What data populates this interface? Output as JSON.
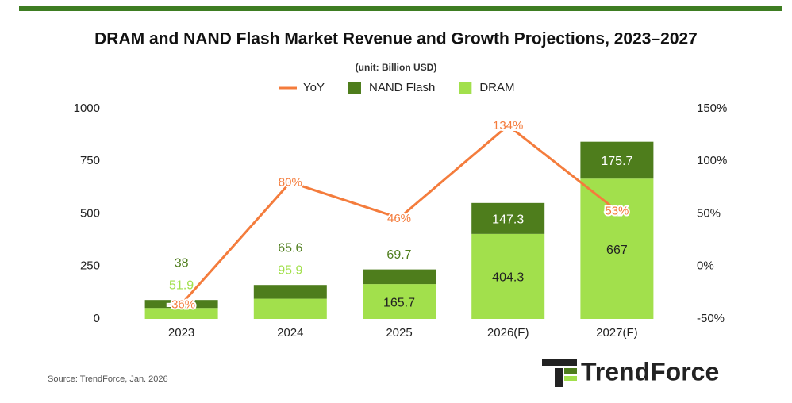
{
  "chart_data": {
    "type": "bar",
    "stacked": true,
    "title": "DRAM and NAND Flash Market Revenue and Growth Projections, 2023–2027",
    "subtitle": "(unit: Billion USD)",
    "categories": [
      "2023",
      "2024",
      "2025",
      "2026(F)",
      "2027(F)"
    ],
    "series": [
      {
        "name": "DRAM",
        "color": "#a2e04c",
        "values": [
          51.9,
          95.9,
          165.7,
          404.3,
          667
        ]
      },
      {
        "name": "NAND Flash",
        "color": "#4e7d1c",
        "values": [
          38,
          65.6,
          69.7,
          147.3,
          175.7
        ]
      },
      {
        "name": "YoY",
        "type": "line",
        "axis": "y2",
        "color": "#f47c3c",
        "values": [
          -36,
          80,
          46,
          134,
          53
        ],
        "value_labels": [
          "-36%",
          "80%",
          "46%",
          "134%",
          "53%"
        ]
      }
    ],
    "ylim": [
      0,
      1000
    ],
    "yticks": [
      0,
      250,
      500,
      750,
      1000
    ],
    "y2lim": [
      -50,
      150
    ],
    "y2ticks": [
      {
        "value": -50,
        "label": "-50%"
      },
      {
        "value": 0,
        "label": "0%"
      },
      {
        "value": 50,
        "label": "50%"
      },
      {
        "value": 100,
        "label": "100%"
      },
      {
        "value": 150,
        "label": "150%"
      }
    ],
    "grid": false,
    "legend": "top",
    "source": "Source: TrendForce, Jan. 2026",
    "logo_text": "TrendForce"
  }
}
